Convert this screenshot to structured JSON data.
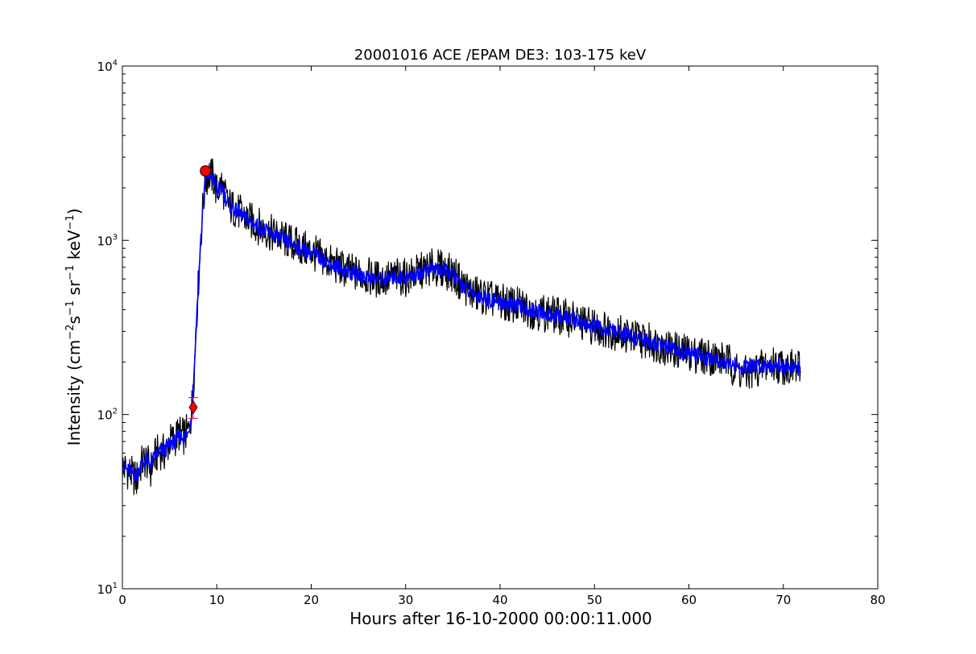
{
  "chart_data": {
    "type": "line",
    "title": "20001016 ACE /EPAM DE3: 103-175 keV",
    "xlabel": "Hours after 16-10-2000 00:00:11.000",
    "ylabel": "Intensity (cm−2s−1sr−1keV−1)",
    "ylabel_parts": {
      "prefix": "Intensity (cm",
      "exp1": "−2",
      "s": "s",
      "exp2": "−1",
      "sr": " sr",
      "exp3": "−1",
      "kev": " keV",
      "exp4": "−1",
      "suffix": ")"
    },
    "xlim": [
      0,
      80
    ],
    "ylim": [
      10,
      10000
    ],
    "yscale": "log",
    "grid": false,
    "x_ticks": [
      {
        "value": 0,
        "label": "0"
      },
      {
        "value": 10,
        "label": "10"
      },
      {
        "value": 20,
        "label": "20"
      },
      {
        "value": 30,
        "label": "30"
      },
      {
        "value": 40,
        "label": "40"
      },
      {
        "value": 50,
        "label": "50"
      },
      {
        "value": 60,
        "label": "60"
      },
      {
        "value": 70,
        "label": "70"
      },
      {
        "value": 80,
        "label": "80"
      }
    ],
    "y_ticks": [
      {
        "value": 10,
        "base": "10",
        "exp": "1"
      },
      {
        "value": 100,
        "base": "10",
        "exp": "2"
      },
      {
        "value": 1000,
        "base": "10",
        "exp": "3"
      },
      {
        "value": 10000,
        "base": "10",
        "exp": "4"
      }
    ],
    "series": [
      {
        "color": "#000000",
        "role": "raw",
        "x": [
          0,
          0.5,
          1,
          1.5,
          2,
          2.5,
          3,
          3.5,
          4,
          4.5,
          5,
          5.5,
          6,
          6.5,
          7,
          7.3,
          7.6,
          7.9,
          8.2,
          8.5,
          8.8,
          9.2,
          9.6,
          10,
          10.5,
          11,
          11.5,
          12,
          13,
          14,
          15,
          16,
          17,
          18,
          19,
          20,
          21,
          22,
          23,
          24,
          25,
          26,
          27,
          28,
          29,
          30,
          31,
          32,
          33,
          34,
          35,
          36,
          37,
          38,
          39,
          40,
          41,
          42,
          43,
          44,
          45,
          46,
          47,
          48,
          49,
          50,
          51,
          52,
          53,
          54,
          55,
          56,
          57,
          58,
          59,
          60,
          61,
          62,
          63,
          64,
          65,
          66,
          67,
          68,
          69,
          70,
          71,
          71.8
        ],
        "y": [
          50,
          48,
          45,
          42,
          52,
          55,
          48,
          58,
          62,
          60,
          70,
          72,
          78,
          75,
          80,
          100,
          180,
          400,
          800,
          1500,
          2200,
          2400,
          2300,
          1900,
          2100,
          1700,
          1550,
          1500,
          1350,
          1250,
          1150,
          1080,
          1020,
          960,
          900,
          860,
          800,
          740,
          700,
          660,
          640,
          620,
          600,
          600,
          620,
          610,
          640,
          680,
          700,
          680,
          640,
          560,
          500,
          480,
          460,
          440,
          430,
          420,
          400,
          390,
          380,
          370,
          360,
          350,
          330,
          320,
          310,
          300,
          290,
          280,
          270,
          260,
          250,
          240,
          230,
          225,
          220,
          215,
          210,
          205,
          180,
          170,
          180,
          190,
          195,
          190,
          185,
          180
        ]
      },
      {
        "color": "#0000ff",
        "role": "smoothed",
        "x": [
          0,
          0.5,
          1,
          1.5,
          2,
          2.5,
          3,
          3.5,
          4,
          4.5,
          5,
          5.5,
          6,
          6.5,
          7,
          7.3,
          7.6,
          7.9,
          8.2,
          8.5,
          8.8,
          9.2,
          9.6,
          10,
          10.5,
          11,
          11.5,
          12,
          13,
          14,
          15,
          16,
          17,
          18,
          19,
          20,
          21,
          22,
          23,
          24,
          25,
          26,
          27,
          28,
          29,
          30,
          31,
          32,
          33,
          34,
          35,
          36,
          37,
          38,
          39,
          40,
          41,
          42,
          43,
          44,
          45,
          46,
          47,
          48,
          49,
          50,
          51,
          52,
          53,
          54,
          55,
          56,
          57,
          58,
          59,
          60,
          61,
          62,
          63,
          64,
          65,
          66,
          67,
          68,
          69,
          70,
          71,
          71.8
        ],
        "y": [
          50,
          48,
          46,
          45,
          52,
          55,
          52,
          58,
          62,
          62,
          68,
          70,
          74,
          74,
          78,
          100,
          180,
          400,
          800,
          1500,
          2200,
          2350,
          2250,
          1900,
          2050,
          1700,
          1550,
          1480,
          1340,
          1240,
          1140,
          1070,
          1010,
          950,
          890,
          850,
          790,
          735,
          695,
          655,
          635,
          615,
          600,
          600,
          615,
          610,
          635,
          670,
          690,
          670,
          630,
          550,
          495,
          475,
          455,
          440,
          428,
          418,
          400,
          388,
          378,
          368,
          358,
          348,
          330,
          318,
          308,
          298,
          288,
          278,
          268,
          258,
          248,
          240,
          230,
          224,
          218,
          212,
          208,
          202,
          190,
          185,
          188,
          192,
          194,
          190,
          186,
          182
        ]
      }
    ],
    "markers": [
      {
        "shape": "circle",
        "color": "#ff0000",
        "x": 8.8,
        "y": 2500
      },
      {
        "shape": "diamond",
        "color": "#ff0000",
        "x": 7.5,
        "y": 110,
        "error_low": 95,
        "error_high": 125
      }
    ]
  }
}
